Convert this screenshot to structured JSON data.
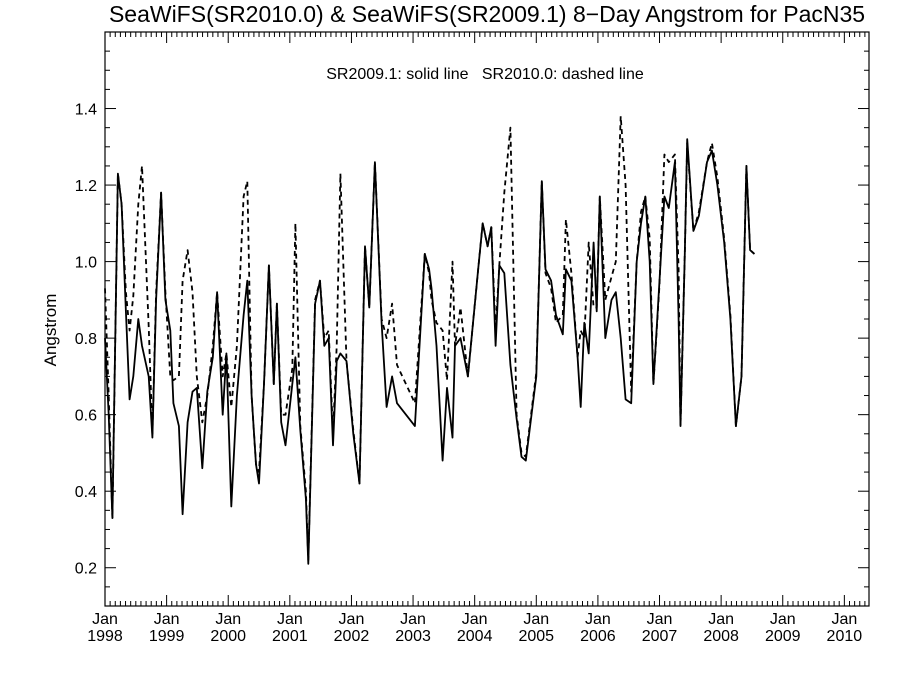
{
  "chart_data": {
    "type": "line",
    "title": "SeaWiFS(SR2010.0) & SeaWiFS(SR2009.1) 8−Day Angstrom for PacN35",
    "xlabel": "",
    "ylabel": "Angstrom",
    "legend_text": "SR2009.1: solid line   SR2010.0: dashed line",
    "xlim": [
      1998.0,
      2010.4
    ],
    "ylim": [
      0.1,
      1.6
    ],
    "y_ticks": [
      "0.2",
      "0.4",
      "0.6",
      "0.8",
      "1.0",
      "1.2",
      "1.4"
    ],
    "x_ticks": [
      {
        "value": 1998.0,
        "month": "Jan",
        "year": "1998"
      },
      {
        "value": 1999.0,
        "month": "Jan",
        "year": "1999"
      },
      {
        "value": 2000.0,
        "month": "Jan",
        "year": "2000"
      },
      {
        "value": 2001.0,
        "month": "Jan",
        "year": "2001"
      },
      {
        "value": 2002.0,
        "month": "Jan",
        "year": "2002"
      },
      {
        "value": 2003.0,
        "month": "Jan",
        "year": "2003"
      },
      {
        "value": 2004.0,
        "month": "Jan",
        "year": "2004"
      },
      {
        "value": 2005.0,
        "month": "Jan",
        "year": "2005"
      },
      {
        "value": 2006.0,
        "month": "Jan",
        "year": "2006"
      },
      {
        "value": 2007.0,
        "month": "Jan",
        "year": "2007"
      },
      {
        "value": 2008.0,
        "month": "Jan",
        "year": "2008"
      },
      {
        "value": 2009.0,
        "month": "Jan",
        "year": "2009"
      },
      {
        "value": 2010.0,
        "month": "Jan",
        "year": "2010"
      }
    ],
    "grid": false,
    "series": [
      {
        "name": "SR2009.1",
        "style": "solid",
        "points": [
          [
            1998.0,
            0.8
          ],
          [
            1998.06,
            0.6
          ],
          [
            1998.12,
            0.33
          ],
          [
            1998.21,
            1.23
          ],
          [
            1998.27,
            1.15
          ],
          [
            1998.34,
            0.87
          ],
          [
            1998.4,
            0.64
          ],
          [
            1998.46,
            0.7
          ],
          [
            1998.54,
            0.85
          ],
          [
            1998.6,
            0.78
          ],
          [
            1998.71,
            0.7
          ],
          [
            1998.77,
            0.54
          ],
          [
            1998.83,
            0.9
          ],
          [
            1998.91,
            1.18
          ],
          [
            1998.98,
            0.9
          ],
          [
            1999.06,
            0.82
          ],
          [
            1999.11,
            0.63
          ],
          [
            1999.2,
            0.57
          ],
          [
            1999.26,
            0.34
          ],
          [
            1999.34,
            0.58
          ],
          [
            1999.42,
            0.66
          ],
          [
            1999.49,
            0.67
          ],
          [
            1999.58,
            0.46
          ],
          [
            1999.66,
            0.66
          ],
          [
            1999.75,
            0.75
          ],
          [
            1999.82,
            0.92
          ],
          [
            1999.91,
            0.6
          ],
          [
            1999.97,
            0.76
          ],
          [
            2000.05,
            0.36
          ],
          [
            2000.14,
            0.65
          ],
          [
            2000.25,
            0.86
          ],
          [
            2000.31,
            0.95
          ],
          [
            2000.38,
            0.65
          ],
          [
            2000.45,
            0.47
          ],
          [
            2000.5,
            0.42
          ],
          [
            2000.58,
            0.68
          ],
          [
            2000.66,
            0.99
          ],
          [
            2000.74,
            0.68
          ],
          [
            2000.79,
            0.89
          ],
          [
            2000.86,
            0.58
          ],
          [
            2000.93,
            0.52
          ],
          [
            2001.04,
            0.68
          ],
          [
            2001.09,
            0.75
          ],
          [
            2001.17,
            0.56
          ],
          [
            2001.26,
            0.38
          ],
          [
            2001.3,
            0.21
          ],
          [
            2001.41,
            0.89
          ],
          [
            2001.49,
            0.95
          ],
          [
            2001.56,
            0.78
          ],
          [
            2001.63,
            0.8
          ],
          [
            2001.7,
            0.52
          ],
          [
            2001.76,
            0.74
          ],
          [
            2001.82,
            0.76
          ],
          [
            2001.92,
            0.74
          ],
          [
            2002.03,
            0.55
          ],
          [
            2002.13,
            0.42
          ],
          [
            2002.22,
            1.04
          ],
          [
            2002.29,
            0.88
          ],
          [
            2002.38,
            1.26
          ],
          [
            2002.49,
            0.84
          ],
          [
            2002.57,
            0.62
          ],
          [
            2002.66,
            0.7
          ],
          [
            2002.74,
            0.63
          ],
          [
            2003.03,
            0.57
          ],
          [
            2003.19,
            1.02
          ],
          [
            2003.26,
            0.98
          ],
          [
            2003.3,
            0.93
          ],
          [
            2003.38,
            0.78
          ],
          [
            2003.48,
            0.48
          ],
          [
            2003.55,
            0.67
          ],
          [
            2003.64,
            0.54
          ],
          [
            2003.68,
            0.78
          ],
          [
            2003.77,
            0.8
          ],
          [
            2003.89,
            0.7
          ],
          [
            2004.05,
            0.97
          ],
          [
            2004.13,
            1.1
          ],
          [
            2004.21,
            1.04
          ],
          [
            2004.27,
            1.09
          ],
          [
            2004.34,
            0.78
          ],
          [
            2004.4,
            0.99
          ],
          [
            2004.48,
            0.97
          ],
          [
            2004.58,
            0.73
          ],
          [
            2004.68,
            0.59
          ],
          [
            2004.76,
            0.49
          ],
          [
            2004.83,
            0.48
          ],
          [
            2005.0,
            0.7
          ],
          [
            2005.09,
            1.21
          ],
          [
            2005.15,
            0.98
          ],
          [
            2005.24,
            0.95
          ],
          [
            2005.32,
            0.86
          ],
          [
            2005.43,
            0.81
          ],
          [
            2005.48,
            0.98
          ],
          [
            2005.57,
            0.95
          ],
          [
            2005.67,
            0.75
          ],
          [
            2005.72,
            0.62
          ],
          [
            2005.78,
            0.84
          ],
          [
            2005.85,
            0.76
          ],
          [
            2005.93,
            1.05
          ],
          [
            2005.98,
            0.87
          ],
          [
            2006.03,
            1.17
          ],
          [
            2006.12,
            0.8
          ],
          [
            2006.22,
            0.9
          ],
          [
            2006.29,
            0.92
          ],
          [
            2006.37,
            0.8
          ],
          [
            2006.45,
            0.64
          ],
          [
            2006.54,
            0.63
          ],
          [
            2006.63,
            1.0
          ],
          [
            2006.7,
            1.1
          ],
          [
            2006.77,
            1.17
          ],
          [
            2006.84,
            1.0
          ],
          [
            2006.9,
            0.68
          ],
          [
            2007.0,
            0.95
          ],
          [
            2007.08,
            1.17
          ],
          [
            2007.15,
            1.14
          ],
          [
            2007.25,
            1.26
          ],
          [
            2007.31,
            0.85
          ],
          [
            2007.34,
            0.57
          ],
          [
            2007.41,
            1.02
          ],
          [
            2007.45,
            1.32
          ],
          [
            2007.55,
            1.08
          ],
          [
            2007.64,
            1.12
          ],
          [
            2007.77,
            1.26
          ],
          [
            2007.85,
            1.29
          ],
          [
            2007.94,
            1.2
          ],
          [
            2008.05,
            1.05
          ],
          [
            2008.15,
            0.85
          ],
          [
            2008.24,
            0.57
          ],
          [
            2008.33,
            0.7
          ],
          [
            2008.41,
            1.25
          ],
          [
            2008.47,
            1.03
          ],
          [
            2008.54,
            1.02
          ]
        ]
      },
      {
        "name": "SR2010.0",
        "style": "dashed",
        "points": [
          [
            1998.0,
            0.93
          ],
          [
            1998.06,
            0.65
          ],
          [
            1998.12,
            0.33
          ],
          [
            1998.21,
            1.23
          ],
          [
            1998.27,
            1.15
          ],
          [
            1998.34,
            0.92
          ],
          [
            1998.4,
            0.82
          ],
          [
            1998.46,
            0.91
          ],
          [
            1998.54,
            1.15
          ],
          [
            1998.6,
            1.25
          ],
          [
            1998.71,
            0.83
          ],
          [
            1998.77,
            0.55
          ],
          [
            1998.83,
            0.92
          ],
          [
            1998.91,
            1.18
          ],
          [
            1998.98,
            0.92
          ],
          [
            1999.06,
            0.7
          ],
          [
            1999.11,
            0.69
          ],
          [
            1999.2,
            0.7
          ],
          [
            1999.26,
            0.95
          ],
          [
            1999.34,
            1.03
          ],
          [
            1999.42,
            0.92
          ],
          [
            1999.49,
            0.7
          ],
          [
            1999.58,
            0.58
          ],
          [
            1999.66,
            0.65
          ],
          [
            1999.75,
            0.78
          ],
          [
            1999.82,
            0.92
          ],
          [
            1999.91,
            0.7
          ],
          [
            1999.97,
            0.76
          ],
          [
            2000.05,
            0.62
          ],
          [
            2000.14,
            0.78
          ],
          [
            2000.25,
            1.17
          ],
          [
            2000.31,
            1.21
          ],
          [
            2000.38,
            0.65
          ],
          [
            2000.45,
            0.47
          ],
          [
            2000.5,
            0.45
          ],
          [
            2000.58,
            0.68
          ],
          [
            2000.66,
            0.99
          ],
          [
            2000.74,
            0.68
          ],
          [
            2000.79,
            0.89
          ],
          [
            2000.86,
            0.6
          ],
          [
            2000.93,
            0.6
          ],
          [
            2001.04,
            0.72
          ],
          [
            2001.09,
            1.1
          ],
          [
            2001.17,
            0.57
          ],
          [
            2001.26,
            0.4
          ],
          [
            2001.3,
            0.22
          ],
          [
            2001.41,
            0.9
          ],
          [
            2001.49,
            0.95
          ],
          [
            2001.56,
            0.8
          ],
          [
            2001.63,
            0.82
          ],
          [
            2001.7,
            0.55
          ],
          [
            2001.76,
            0.78
          ],
          [
            2001.82,
            1.23
          ],
          [
            2001.92,
            0.74
          ],
          [
            2002.03,
            0.56
          ],
          [
            2002.13,
            0.42
          ],
          [
            2002.22,
            1.04
          ],
          [
            2002.29,
            0.88
          ],
          [
            2002.38,
            1.26
          ],
          [
            2002.49,
            0.85
          ],
          [
            2002.57,
            0.8
          ],
          [
            2002.66,
            0.89
          ],
          [
            2002.74,
            0.73
          ],
          [
            2003.03,
            0.63
          ],
          [
            2003.19,
            1.02
          ],
          [
            2003.26,
            0.97
          ],
          [
            2003.3,
            0.9
          ],
          [
            2003.38,
            0.84
          ],
          [
            2003.48,
            0.82
          ],
          [
            2003.55,
            0.69
          ],
          [
            2003.64,
            1.0
          ],
          [
            2003.68,
            0.78
          ],
          [
            2003.77,
            0.88
          ],
          [
            2003.89,
            0.7
          ],
          [
            2004.05,
            0.97
          ],
          [
            2004.13,
            1.1
          ],
          [
            2004.21,
            1.04
          ],
          [
            2004.27,
            1.09
          ],
          [
            2004.34,
            0.82
          ],
          [
            2004.4,
            0.99
          ],
          [
            2004.48,
            1.18
          ],
          [
            2004.58,
            1.35
          ],
          [
            2004.68,
            0.6
          ],
          [
            2004.76,
            0.5
          ],
          [
            2004.83,
            0.49
          ],
          [
            2005.0,
            0.71
          ],
          [
            2005.09,
            1.21
          ],
          [
            2005.15,
            0.97
          ],
          [
            2005.24,
            0.93
          ],
          [
            2005.32,
            0.84
          ],
          [
            2005.43,
            0.86
          ],
          [
            2005.48,
            1.11
          ],
          [
            2005.57,
            0.97
          ],
          [
            2005.67,
            0.75
          ],
          [
            2005.72,
            0.82
          ],
          [
            2005.78,
            0.8
          ],
          [
            2005.85,
            1.05
          ],
          [
            2005.93,
            0.88
          ],
          [
            2005.98,
            0.88
          ],
          [
            2006.03,
            1.17
          ],
          [
            2006.12,
            0.9
          ],
          [
            2006.22,
            0.96
          ],
          [
            2006.29,
            1.0
          ],
          [
            2006.37,
            1.38
          ],
          [
            2006.45,
            1.2
          ],
          [
            2006.54,
            0.66
          ],
          [
            2006.63,
            1.0
          ],
          [
            2006.7,
            1.13
          ],
          [
            2006.77,
            1.17
          ],
          [
            2006.84,
            1.06
          ],
          [
            2006.9,
            0.68
          ],
          [
            2007.0,
            0.94
          ],
          [
            2007.08,
            1.28
          ],
          [
            2007.15,
            1.26
          ],
          [
            2007.25,
            1.28
          ],
          [
            2007.31,
            0.98
          ],
          [
            2007.34,
            0.57
          ],
          [
            2007.41,
            1.02
          ],
          [
            2007.45,
            1.31
          ],
          [
            2007.55,
            1.08
          ],
          [
            2007.64,
            1.13
          ],
          [
            2007.77,
            1.26
          ],
          [
            2007.85,
            1.31
          ],
          [
            2007.94,
            1.22
          ],
          [
            2008.05,
            1.06
          ],
          [
            2008.15,
            0.86
          ],
          [
            2008.24,
            0.57
          ],
          [
            2008.33,
            0.7
          ],
          [
            2008.41,
            1.25
          ],
          [
            2008.47,
            1.03
          ],
          [
            2008.54,
            1.02
          ]
        ]
      }
    ]
  }
}
